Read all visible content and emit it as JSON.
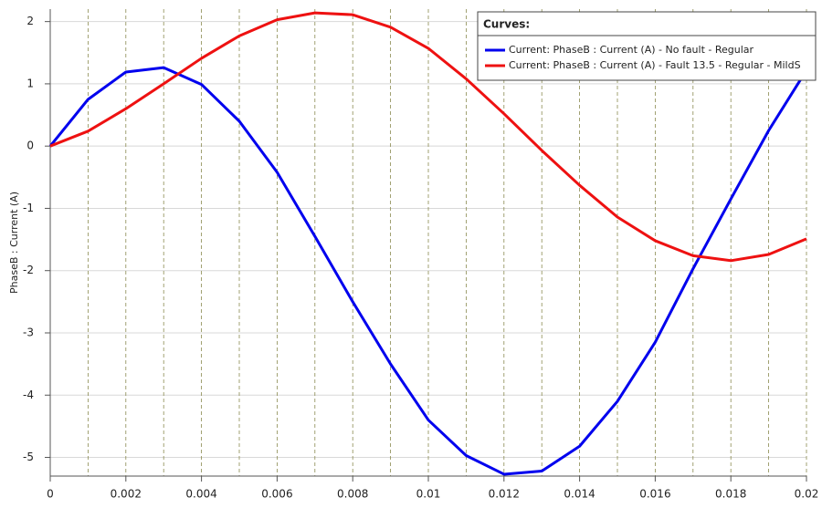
{
  "chart_data": {
    "type": "line",
    "y_label": "PhaseB : Current (A)",
    "legend_title": "Curves:",
    "legend": "upper right",
    "grid": true,
    "x": [
      0,
      0.001,
      0.002,
      0.003,
      0.004,
      0.005,
      0.006,
      0.007,
      0.008,
      0.009,
      0.01,
      0.011,
      0.012,
      0.013,
      0.014,
      0.015,
      0.016,
      0.017,
      0.018,
      0.019,
      0.02
    ],
    "xlim": [
      0,
      0.02
    ],
    "xticks": [
      0,
      0.002,
      0.004,
      0.006,
      0.008,
      0.01,
      0.012,
      0.014,
      0.016,
      0.018,
      0.02
    ],
    "ylim": [
      -5.3,
      2.2
    ],
    "yticks": [
      2,
      1,
      0,
      -1,
      -2,
      -3,
      -4,
      -5
    ],
    "series": [
      {
        "name": "Current:  PhaseB : Current (A) - No fault - Regular",
        "color": "#0000ee",
        "values": [
          0,
          0.75,
          1.19,
          1.26,
          0.99,
          0.4,
          -0.42,
          -1.45,
          -2.5,
          -3.5,
          -4.4,
          -4.97,
          -5.27,
          -5.22,
          -4.82,
          -4.1,
          -3.15,
          -1.97,
          -0.85,
          0.25,
          1.22
        ]
      },
      {
        "name": "Current:  PhaseB : Current (A) - Fault 13.5 - Regular - MildS",
        "color": "#ee1111",
        "values": [
          0,
          0.24,
          0.6,
          1.0,
          1.41,
          1.77,
          2.03,
          2.14,
          2.11,
          1.91,
          1.57,
          1.08,
          0.52,
          -0.07,
          -0.63,
          -1.14,
          -1.52,
          -1.76,
          -1.84,
          -1.74,
          -1.49
        ]
      }
    ]
  }
}
